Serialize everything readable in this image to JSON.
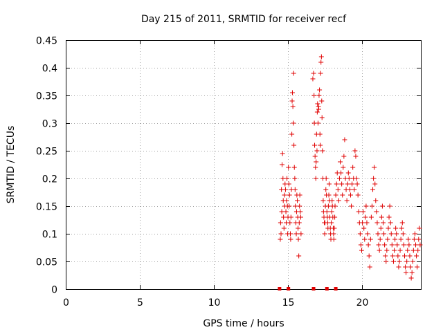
{
  "chart_data": {
    "type": "scatter",
    "title": "Day 215 of 2011, SRMTID for receiver recf",
    "xlabel": "GPS time / hours",
    "ylabel": "SRMTID / TECUs",
    "xlim": [
      0,
      24
    ],
    "ylim": [
      0,
      0.45
    ],
    "x_ticks": [
      "0",
      "5",
      "10",
      "15",
      "20"
    ],
    "x_tick_values": [
      0,
      5,
      10,
      15,
      20
    ],
    "y_ticks": [
      "0",
      "0.05",
      "0.1",
      "0.15",
      "0.2",
      "0.25",
      "0.3",
      "0.35",
      "0.4",
      "0.45"
    ],
    "y_tick_values": [
      0,
      0.05,
      0.1,
      0.15,
      0.2,
      0.25,
      0.3,
      0.35,
      0.4,
      0.45
    ],
    "grid": true,
    "marker": "+",
    "series": [
      {
        "name": "SRMTID",
        "color": "#e00000",
        "points": [
          [
            14.5,
            0.09
          ],
          [
            14.52,
            0.12
          ],
          [
            14.55,
            0.1
          ],
          [
            14.58,
            0.18
          ],
          [
            14.6,
            0.14
          ],
          [
            14.62,
            0.225
          ],
          [
            14.65,
            0.245
          ],
          [
            14.68,
            0.2
          ],
          [
            14.7,
            0.16
          ],
          [
            14.72,
            0.13
          ],
          [
            14.75,
            0.11
          ],
          [
            14.78,
            0.17
          ],
          [
            14.8,
            0.15
          ],
          [
            14.82,
            0.19
          ],
          [
            14.85,
            0.18
          ],
          [
            14.88,
            0.14
          ],
          [
            14.9,
            0.12
          ],
          [
            14.92,
            0.16
          ],
          [
            14.95,
            0.2
          ],
          [
            14.98,
            0.15
          ],
          [
            15.0,
            0.1
          ],
          [
            15.02,
            0.13
          ],
          [
            15.05,
            0.22
          ],
          [
            15.08,
            0.19
          ],
          [
            15.1,
            0.15
          ],
          [
            15.12,
            0.17
          ],
          [
            15.15,
            0.12
          ],
          [
            15.18,
            0.1
          ],
          [
            15.2,
            0.09
          ],
          [
            15.22,
            0.13
          ],
          [
            15.25,
            0.18
          ],
          [
            15.28,
            0.28
          ],
          [
            15.3,
            0.34
          ],
          [
            15.32,
            0.355
          ],
          [
            15.35,
            0.33
          ],
          [
            15.38,
            0.3
          ],
          [
            15.4,
            0.39
          ],
          [
            15.42,
            0.26
          ],
          [
            15.45,
            0.22
          ],
          [
            15.48,
            0.2
          ],
          [
            15.5,
            0.18
          ],
          [
            15.52,
            0.15
          ],
          [
            15.55,
            0.12
          ],
          [
            15.58,
            0.1
          ],
          [
            15.6,
            0.14
          ],
          [
            15.62,
            0.17
          ],
          [
            15.65,
            0.16
          ],
          [
            15.68,
            0.13
          ],
          [
            15.7,
            0.11
          ],
          [
            15.72,
            0.09
          ],
          [
            15.75,
            0.06
          ],
          [
            15.78,
            0.12
          ],
          [
            15.8,
            0.15
          ],
          [
            15.82,
            0.17
          ],
          [
            15.85,
            0.14
          ],
          [
            15.88,
            0.13
          ],
          [
            15.9,
            0.1
          ],
          [
            16.7,
            0.38
          ],
          [
            16.75,
            0.39
          ],
          [
            16.78,
            0.35
          ],
          [
            16.8,
            0.3
          ],
          [
            16.82,
            0.26
          ],
          [
            16.85,
            0.24
          ],
          [
            16.88,
            0.22
          ],
          [
            16.9,
            0.2
          ],
          [
            16.92,
            0.23
          ],
          [
            16.95,
            0.28
          ],
          [
            16.98,
            0.25
          ],
          [
            17.0,
            0.32
          ],
          [
            17.02,
            0.335
          ],
          [
            17.05,
            0.3
          ],
          [
            17.08,
            0.33
          ],
          [
            17.1,
            0.325
          ],
          [
            17.12,
            0.35
          ],
          [
            17.15,
            0.36
          ],
          [
            17.18,
            0.28
          ],
          [
            17.2,
            0.26
          ],
          [
            17.22,
            0.39
          ],
          [
            17.25,
            0.41
          ],
          [
            17.28,
            0.42
          ],
          [
            17.3,
            0.34
          ],
          [
            17.32,
            0.31
          ],
          [
            17.35,
            0.25
          ],
          [
            17.38,
            0.2
          ],
          [
            17.4,
            0.16
          ],
          [
            17.42,
            0.14
          ],
          [
            17.45,
            0.13
          ],
          [
            17.48,
            0.12
          ],
          [
            17.5,
            0.1
          ],
          [
            17.52,
            0.12
          ],
          [
            17.55,
            0.15
          ],
          [
            17.58,
            0.18
          ],
          [
            17.6,
            0.2
          ],
          [
            17.62,
            0.17
          ],
          [
            17.65,
            0.14
          ],
          [
            17.68,
            0.13
          ],
          [
            17.7,
            0.12
          ],
          [
            17.72,
            0.11
          ],
          [
            17.75,
            0.15
          ],
          [
            17.78,
            0.17
          ],
          [
            17.8,
            0.19
          ],
          [
            17.82,
            0.16
          ],
          [
            17.85,
            0.13
          ],
          [
            17.88,
            0.11
          ],
          [
            17.9,
            0.1
          ],
          [
            17.92,
            0.09
          ],
          [
            17.95,
            0.12
          ],
          [
            17.98,
            0.14
          ],
          [
            18.0,
            0.16
          ],
          [
            18.02,
            0.15
          ],
          [
            18.05,
            0.13
          ],
          [
            18.08,
            0.11
          ],
          [
            18.1,
            0.1
          ],
          [
            18.12,
            0.09
          ],
          [
            18.15,
            0.11
          ],
          [
            18.18,
            0.13
          ],
          [
            18.2,
            0.15
          ],
          [
            18.25,
            0.17
          ],
          [
            18.3,
            0.19
          ],
          [
            18.35,
            0.21
          ],
          [
            18.4,
            0.18
          ],
          [
            18.45,
            0.16
          ],
          [
            18.5,
            0.2
          ],
          [
            18.55,
            0.23
          ],
          [
            18.6,
            0.21
          ],
          [
            18.65,
            0.19
          ],
          [
            18.7,
            0.17
          ],
          [
            18.75,
            0.22
          ],
          [
            18.8,
            0.24
          ],
          [
            18.85,
            0.27
          ],
          [
            18.9,
            0.2
          ],
          [
            18.95,
            0.18
          ],
          [
            19.0,
            0.16
          ],
          [
            19.05,
            0.19
          ],
          [
            19.1,
            0.21
          ],
          [
            19.15,
            0.2
          ],
          [
            19.2,
            0.18
          ],
          [
            19.25,
            0.17
          ],
          [
            19.3,
            0.15
          ],
          [
            19.35,
            0.19
          ],
          [
            19.4,
            0.22
          ],
          [
            19.45,
            0.2
          ],
          [
            19.5,
            0.18
          ],
          [
            19.55,
            0.25
          ],
          [
            19.6,
            0.24
          ],
          [
            19.65,
            0.2
          ],
          [
            19.7,
            0.19
          ],
          [
            19.75,
            0.17
          ],
          [
            19.8,
            0.14
          ],
          [
            19.85,
            0.12
          ],
          [
            19.9,
            0.1
          ],
          [
            19.95,
            0.08
          ],
          [
            20.0,
            0.07
          ],
          [
            20.05,
            0.12
          ],
          [
            20.1,
            0.14
          ],
          [
            20.15,
            0.11
          ],
          [
            20.2,
            0.09
          ],
          [
            20.25,
            0.13
          ],
          [
            20.3,
            0.15
          ],
          [
            20.35,
            0.12
          ],
          [
            20.4,
            0.1
          ],
          [
            20.45,
            0.08
          ],
          [
            20.5,
            0.06
          ],
          [
            20.55,
            0.04
          ],
          [
            20.6,
            0.09
          ],
          [
            20.65,
            0.13
          ],
          [
            20.7,
            0.15
          ],
          [
            20.75,
            0.18
          ],
          [
            20.8,
            0.2
          ],
          [
            20.85,
            0.22
          ],
          [
            20.9,
            0.19
          ],
          [
            20.95,
            0.16
          ],
          [
            21.0,
            0.14
          ],
          [
            21.05,
            0.12
          ],
          [
            21.1,
            0.1
          ],
          [
            21.15,
            0.08
          ],
          [
            21.2,
            0.07
          ],
          [
            21.25,
            0.09
          ],
          [
            21.3,
            0.11
          ],
          [
            21.35,
            0.13
          ],
          [
            21.4,
            0.15
          ],
          [
            21.45,
            0.12
          ],
          [
            21.5,
            0.1
          ],
          [
            21.55,
            0.08
          ],
          [
            21.6,
            0.06
          ],
          [
            21.65,
            0.05
          ],
          [
            21.7,
            0.07
          ],
          [
            21.75,
            0.09
          ],
          [
            21.8,
            0.11
          ],
          [
            21.85,
            0.13
          ],
          [
            21.9,
            0.15
          ],
          [
            21.95,
            0.12
          ],
          [
            22.0,
            0.1
          ],
          [
            22.05,
            0.08
          ],
          [
            22.1,
            0.06
          ],
          [
            22.15,
            0.05
          ],
          [
            22.2,
            0.07
          ],
          [
            22.25,
            0.09
          ],
          [
            22.3,
            0.11
          ],
          [
            22.35,
            0.1
          ],
          [
            22.4,
            0.08
          ],
          [
            22.45,
            0.06
          ],
          [
            22.5,
            0.04
          ],
          [
            22.55,
            0.05
          ],
          [
            22.6,
            0.07
          ],
          [
            22.65,
            0.09
          ],
          [
            22.7,
            0.11
          ],
          [
            22.75,
            0.12
          ],
          [
            22.8,
            0.1
          ],
          [
            22.85,
            0.08
          ],
          [
            22.9,
            0.06
          ],
          [
            22.95,
            0.04
          ],
          [
            23.0,
            0.03
          ],
          [
            23.05,
            0.05
          ],
          [
            23.1,
            0.07
          ],
          [
            23.15,
            0.09
          ],
          [
            23.2,
            0.08
          ],
          [
            23.25,
            0.06
          ],
          [
            23.3,
            0.04
          ],
          [
            23.35,
            0.02
          ],
          [
            23.4,
            0.03
          ],
          [
            23.45,
            0.05
          ],
          [
            23.5,
            0.07
          ],
          [
            23.55,
            0.09
          ],
          [
            23.6,
            0.1
          ],
          [
            23.65,
            0.08
          ],
          [
            23.7,
            0.06
          ],
          [
            23.75,
            0.04
          ],
          [
            23.8,
            0.07
          ],
          [
            23.85,
            0.09
          ],
          [
            23.9,
            0.11
          ],
          [
            23.95,
            0.08
          ]
        ]
      }
    ],
    "axis_marks": [
      14.45,
      15.05,
      16.75,
      17.65,
      18.25
    ]
  }
}
